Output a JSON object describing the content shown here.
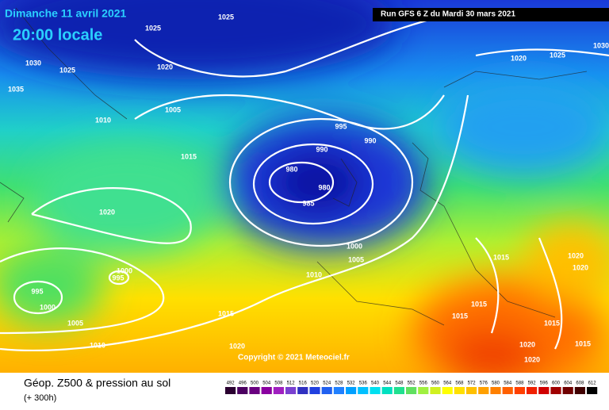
{
  "header": {
    "date": "Dimanche 11 avril 2021",
    "time": "20:00 locale",
    "run": "Run GFS 6 Z du Mardi 30 mars 2021"
  },
  "map": {
    "isobar_labels": [
      "1025",
      "1025",
      "1020",
      "1030",
      "1025",
      "1035",
      "1005",
      "1010",
      "1015",
      "995",
      "990",
      "990",
      "980",
      "980",
      "985",
      "1020",
      "1000",
      "1005",
      "1010",
      "1000",
      "995",
      "995",
      "1000",
      "1005",
      "1010",
      "1015",
      "1020",
      "1015",
      "1020",
      "1020",
      "1015",
      "1015",
      "1015",
      "1015",
      "1020",
      "1020",
      "1020",
      "1025",
      "1030"
    ],
    "copyright": "Copyright © 2021 Meteociel.fr"
  },
  "footer": {
    "title": "Géop. Z500 & pression au sol",
    "lead": "(+ 300h)",
    "scale": [
      492,
      496,
      500,
      504,
      508,
      512,
      516,
      520,
      524,
      528,
      532,
      536,
      540,
      544,
      548,
      552,
      556,
      560,
      564,
      568,
      572,
      576,
      580,
      584,
      588,
      592,
      596,
      600,
      604,
      608,
      612
    ]
  }
}
